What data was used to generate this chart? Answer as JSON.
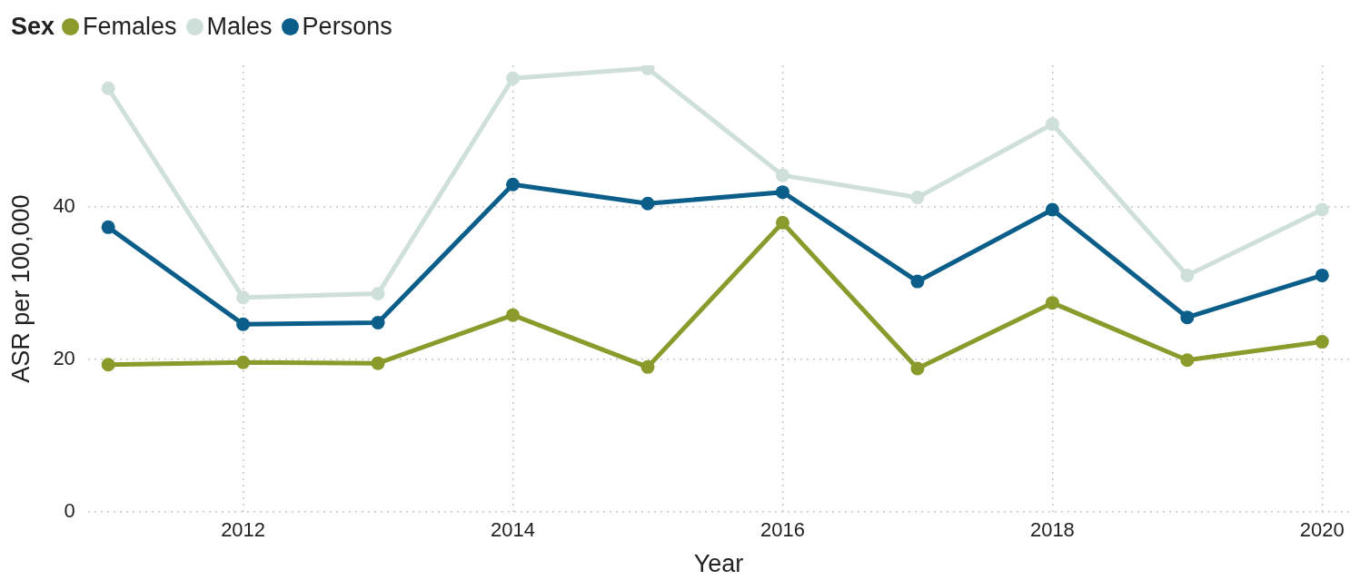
{
  "chart_data": {
    "type": "line",
    "xlabel": "Year",
    "ylabel": "ASR per 100,000",
    "legend_title": "Sex",
    "legend": "top left",
    "grid": true,
    "marker": "circle",
    "line_style": "solid",
    "x": [
      2011,
      2012,
      2013,
      2014,
      2015,
      2016,
      2017,
      2018,
      2019,
      2020
    ],
    "xlim": [
      2010.85,
      2020.2
    ],
    "xticks": [
      2012,
      2014,
      2016,
      2018,
      2020
    ],
    "ylim": [
      0,
      58.5
    ],
    "yticks": [
      0,
      20,
      40
    ],
    "series": [
      {
        "name": "Females",
        "color": "#8a9a2b",
        "values": [
          19.3,
          19.6,
          19.5,
          25.8,
          19.0,
          37.9,
          18.8,
          27.4,
          19.9,
          22.3
        ]
      },
      {
        "name": "Males",
        "color": "#cfdfda",
        "values": [
          55.5,
          28.1,
          28.6,
          56.8,
          58.1,
          44.1,
          41.2,
          50.8,
          31.0,
          39.6
        ]
      },
      {
        "name": "Persons",
        "color": "#0b5e8a",
        "values": [
          37.3,
          24.6,
          24.8,
          42.9,
          40.4,
          41.9,
          30.2,
          39.6,
          25.5,
          31.0
        ]
      }
    ]
  }
}
